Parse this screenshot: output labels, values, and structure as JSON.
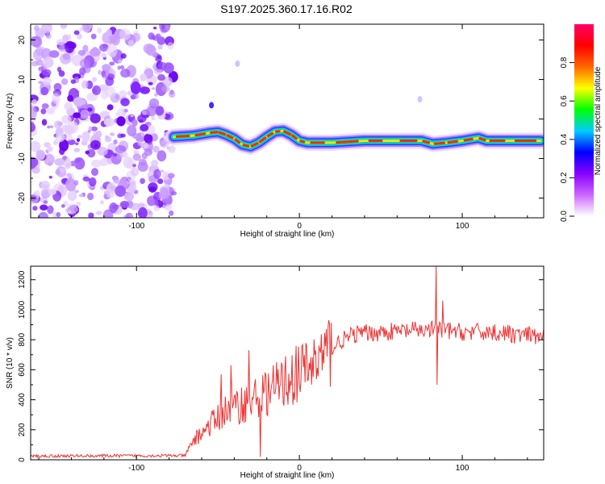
{
  "title": "S197.2025.360.17.16.R02",
  "chart_data": [
    {
      "type": "heatmap",
      "xlabel": "Height of straight line (km)",
      "ylabel": "Frequency (Hz)",
      "xlim": [
        -165,
        150
      ],
      "ylim": [
        -25,
        24
      ],
      "xticks": [
        -100,
        0,
        100
      ],
      "yticks": [
        -20,
        -10,
        0,
        10,
        20
      ],
      "noise_region_x": [
        -165,
        -77
      ],
      "signal_ridge": {
        "start_x": -77,
        "end_x": 148,
        "points": [
          {
            "x": -77,
            "y": -4.5
          },
          {
            "x": -65,
            "y": -4.2
          },
          {
            "x": -55,
            "y": -3.5
          },
          {
            "x": -50,
            "y": -3.3
          },
          {
            "x": -45,
            "y": -4.0
          },
          {
            "x": -40,
            "y": -5.0
          },
          {
            "x": -35,
            "y": -6.5
          },
          {
            "x": -30,
            "y": -7.0
          },
          {
            "x": -25,
            "y": -6.0
          },
          {
            "x": -20,
            "y": -4.5
          },
          {
            "x": -15,
            "y": -3.2
          },
          {
            "x": -10,
            "y": -3.0
          },
          {
            "x": -5,
            "y": -4.0
          },
          {
            "x": 0,
            "y": -5.5
          },
          {
            "x": 5,
            "y": -6.0
          },
          {
            "x": 20,
            "y": -6.0
          },
          {
            "x": 40,
            "y": -5.5
          },
          {
            "x": 60,
            "y": -5.5
          },
          {
            "x": 75,
            "y": -5.5
          },
          {
            "x": 82,
            "y": -6.3
          },
          {
            "x": 90,
            "y": -6.0
          },
          {
            "x": 100,
            "y": -5.5
          },
          {
            "x": 110,
            "y": -4.8
          },
          {
            "x": 115,
            "y": -5.5
          },
          {
            "x": 130,
            "y": -5.5
          },
          {
            "x": 148,
            "y": -5.5
          }
        ]
      },
      "outliers": [
        {
          "x": -54,
          "y": 3.5
        },
        {
          "x": -38,
          "y": 14
        },
        {
          "x": 74,
          "y": 5
        }
      ]
    },
    {
      "type": "line",
      "xlabel": "Height of straight line (km)",
      "ylabel": "SNR (10 * v/v)",
      "xlim": [
        -165,
        150
      ],
      "ylim": [
        0,
        1290
      ],
      "xticks": [
        -100,
        0,
        100
      ],
      "yticks": [
        0,
        200,
        400,
        600,
        800,
        1000,
        1200
      ],
      "series": [
        {
          "name": "SNR",
          "color": "#ee3333",
          "trend": [
            {
              "x": -165,
              "y": 25
            },
            {
              "x": -70,
              "y": 28
            },
            {
              "x": -65,
              "y": 130
            },
            {
              "x": -55,
              "y": 230
            },
            {
              "x": -45,
              "y": 330
            },
            {
              "x": -35,
              "y": 370
            },
            {
              "x": -25,
              "y": 420
            },
            {
              "x": -15,
              "y": 480
            },
            {
              "x": -5,
              "y": 550
            },
            {
              "x": 5,
              "y": 610
            },
            {
              "x": 15,
              "y": 700
            },
            {
              "x": 25,
              "y": 790
            },
            {
              "x": 35,
              "y": 840
            },
            {
              "x": 50,
              "y": 850
            },
            {
              "x": 70,
              "y": 860
            },
            {
              "x": 85,
              "y": 870
            },
            {
              "x": 100,
              "y": 850
            },
            {
              "x": 120,
              "y": 850
            },
            {
              "x": 135,
              "y": 830
            },
            {
              "x": 150,
              "y": 820
            }
          ],
          "spikes": [
            {
              "x": -48,
              "y": 570
            },
            {
              "x": -42,
              "y": 630
            },
            {
              "x": -31,
              "y": 730
            },
            {
              "x": -24,
              "y": 20
            },
            {
              "x": 84,
              "y": 1290
            },
            {
              "x": 84.5,
              "y": 500
            },
            {
              "x": 88,
              "y": 1060
            }
          ]
        }
      ]
    }
  ],
  "colorbar": {
    "label": "Normalized spectral amplitude",
    "ticks": [
      "0.0",
      "0.2",
      "0.4",
      "0.6",
      "0.8"
    ],
    "tick_values": [
      0.0,
      0.2,
      0.4,
      0.6,
      0.8
    ],
    "stops": [
      "#ffffff",
      "#cc66ff",
      "#8800ff",
      "#0000ff",
      "#00ccff",
      "#00ff00",
      "#ffff00",
      "#ff6600",
      "#ff0000",
      "#ff0066"
    ]
  }
}
